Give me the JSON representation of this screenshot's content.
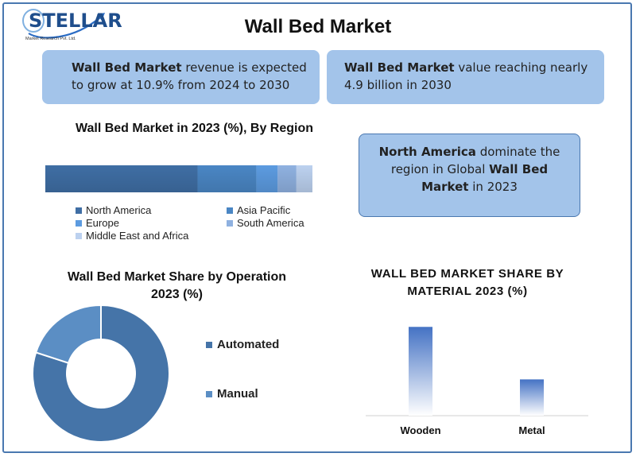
{
  "header": {
    "logo_text": "STELLAR",
    "logo_sub": "Market Research Pvt. Ltd.",
    "title": "Wall Bed Market"
  },
  "cards": {
    "growth": {
      "bold": "Wall Bed Market",
      "text": " revenue is expected to grow at 10.9% from 2024 to 2030"
    },
    "value": {
      "bold": "Wall Bed Market",
      "text": " value reaching nearly 4.9 billion in 2030"
    },
    "region": {
      "bold1": "North America",
      "text1": " dominate the region in Global ",
      "bold2": "Wall Bed Market",
      "text2": " in 2023"
    }
  },
  "chart_data": [
    {
      "type": "bar",
      "orientation": "horizontal-stacked",
      "title": "Wall Bed Market in 2023 (%), By Region",
      "series": [
        {
          "name": "North America",
          "value": 57,
          "color": "#3f6ea4"
        },
        {
          "name": "Asia Pacific",
          "value": 22,
          "color": "#4a86c4"
        },
        {
          "name": "Europe",
          "value": 8,
          "color": "#5c9be0"
        },
        {
          "name": "South America",
          "value": 7,
          "color": "#8fb1e0"
        },
        {
          "name": "Middle East and Africa",
          "value": 6,
          "color": "#bcd1ef"
        }
      ],
      "legend_placement": "bottom"
    },
    {
      "type": "pie",
      "style": "donut",
      "title": "Wall Bed Market Share by Operation 2023 (%)",
      "slices": [
        {
          "name": "Automated",
          "value": 80,
          "color": "#4574a8"
        },
        {
          "name": "Manual",
          "value": 20,
          "color": "#5b8ec4"
        }
      ],
      "legend_placement": "right"
    },
    {
      "type": "bar",
      "title": "WALL BED MARKET SHARE BY MATERIAL 2023 (%)",
      "categories": [
        "Wooden",
        "Metal"
      ],
      "values": [
        71,
        29
      ],
      "ylim": [
        0,
        75
      ],
      "color": "#4472c4",
      "gradient": true,
      "grid": false
    }
  ]
}
